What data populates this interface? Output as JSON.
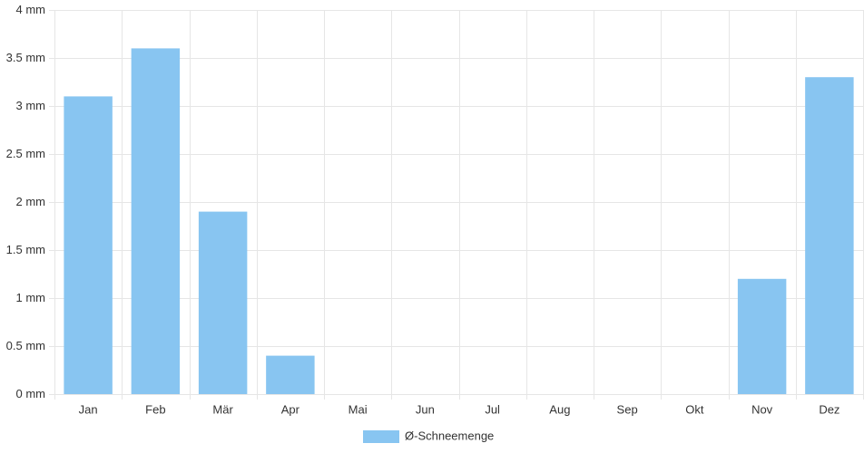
{
  "chart_data": {
    "type": "bar",
    "categories": [
      "Jan",
      "Feb",
      "Mär",
      "Apr",
      "Mai",
      "Jun",
      "Jul",
      "Aug",
      "Sep",
      "Okt",
      "Nov",
      "Dez"
    ],
    "series": [
      {
        "name": "Ø-Schneemenge",
        "color": "#88c5f1",
        "values": [
          3.1,
          3.6,
          1.9,
          0.4,
          0,
          0,
          0,
          0,
          0,
          0,
          1.2,
          3.3
        ]
      }
    ],
    "ylim": [
      0,
      4
    ],
    "yticks": [
      {
        "value": 0,
        "label": "0 mm"
      },
      {
        "value": 0.5,
        "label": "0.5 mm"
      },
      {
        "value": 1,
        "label": "1 mm"
      },
      {
        "value": 1.5,
        "label": "1.5 mm"
      },
      {
        "value": 2,
        "label": "2 mm"
      },
      {
        "value": 2.5,
        "label": "2.5 mm"
      },
      {
        "value": 3,
        "label": "3 mm"
      },
      {
        "value": 3.5,
        "label": "3.5 mm"
      },
      {
        "value": 4,
        "label": "4 mm"
      }
    ],
    "grid": true,
    "legend": "bottom"
  }
}
